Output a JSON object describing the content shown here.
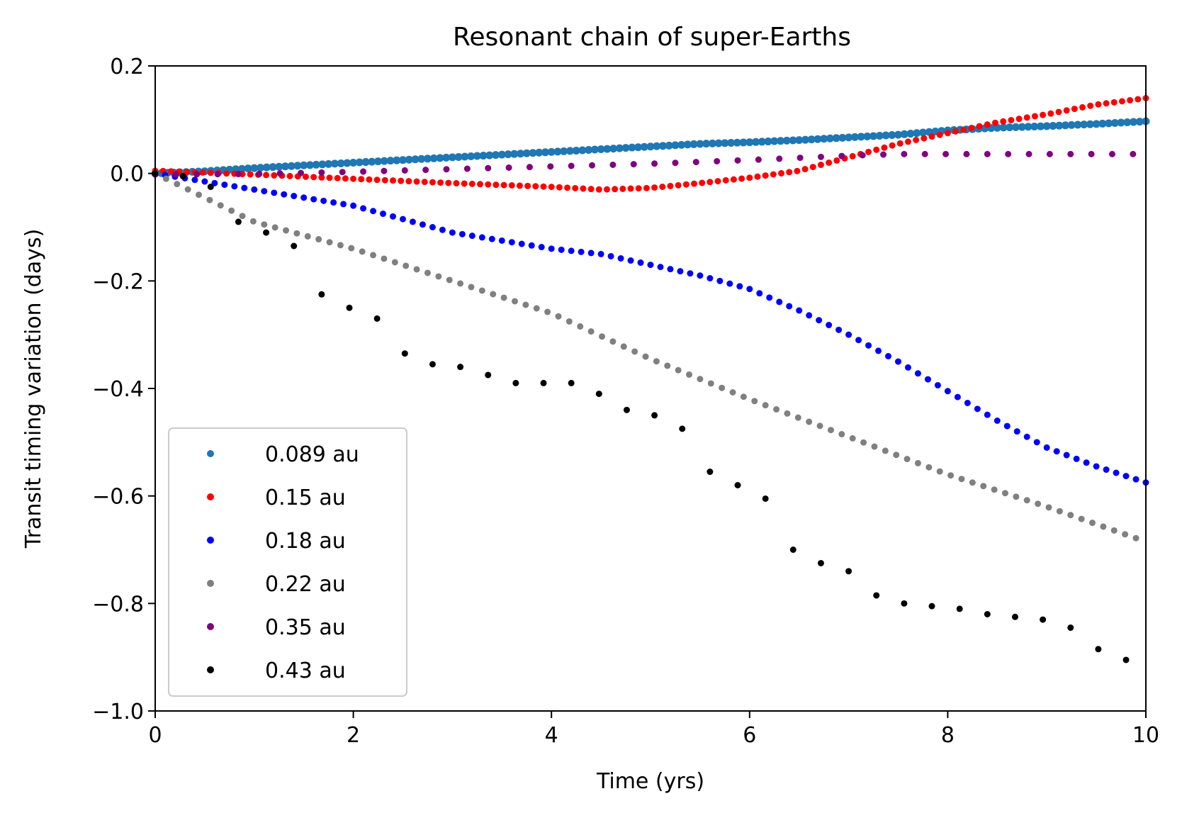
{
  "chart_data": {
    "type": "scatter",
    "title": "Resonant chain of super-Earths",
    "xlabel": "Time (yrs)",
    "ylabel": "Transit timing variation (days)",
    "xlim": [
      0,
      10
    ],
    "ylim": [
      -1.0,
      0.2
    ],
    "xticks": [
      0,
      2,
      4,
      6,
      8,
      10
    ],
    "xtick_labels": [
      "0",
      "2",
      "4",
      "6",
      "8",
      "10"
    ],
    "yticks": [
      0.2,
      0.0,
      -0.2,
      -0.4,
      -0.6,
      -0.8,
      -1.0
    ],
    "ytick_labels": [
      "0.2",
      "0.0",
      "−0.2",
      "−0.4",
      "−0.6",
      "−0.8",
      "−1.0"
    ],
    "grid": false,
    "legend_position": "lower-left",
    "series": [
      {
        "name": "0.089 au",
        "color": "#1f77b4",
        "x": [
          0,
          0.5,
          1,
          1.5,
          2,
          2.5,
          3,
          3.5,
          4,
          4.5,
          5,
          5.5,
          6,
          6.5,
          7,
          7.5,
          8,
          8.5,
          9,
          9.5,
          10
        ],
        "y": [
          0,
          0.004,
          0.01,
          0.015,
          0.02,
          0.025,
          0.03,
          0.035,
          0.04,
          0.045,
          0.05,
          0.055,
          0.058,
          0.062,
          0.067,
          0.072,
          0.08,
          0.085,
          0.088,
          0.092,
          0.097
        ],
        "period": 0.0625
      },
      {
        "name": "0.15 au",
        "color": "#ff0000",
        "x": [
          0,
          1,
          2,
          3,
          4,
          4.5,
          5,
          5.5,
          6,
          6.5,
          7,
          7.5,
          8,
          8.5,
          9,
          9.5,
          10
        ],
        "y": [
          0.005,
          -0.002,
          -0.01,
          -0.018,
          -0.025,
          -0.03,
          -0.027,
          -0.018,
          -0.008,
          0.005,
          0.03,
          0.055,
          0.075,
          0.095,
          0.11,
          0.128,
          0.14
        ],
        "period": 0.08
      },
      {
        "name": "0.18 au",
        "color": "#0000ff",
        "x": [
          0,
          1,
          2,
          3,
          4,
          4.5,
          5,
          5.5,
          6,
          6.5,
          7,
          7.5,
          8,
          8.5,
          9,
          9.5,
          10
        ],
        "y": [
          0,
          -0.03,
          -0.06,
          -0.11,
          -0.14,
          -0.15,
          -0.17,
          -0.19,
          -0.215,
          -0.255,
          -0.3,
          -0.35,
          -0.405,
          -0.46,
          -0.51,
          -0.545,
          -0.575
        ],
        "period": 0.1
      },
      {
        "name": "0.22 au",
        "color": "#808080",
        "x": [
          0,
          0.5,
          1,
          2,
          3,
          4,
          5,
          6,
          7,
          8,
          9,
          10
        ],
        "y": [
          0,
          -0.045,
          -0.09,
          -0.14,
          -0.2,
          -0.26,
          -0.345,
          -0.42,
          -0.49,
          -0.56,
          -0.62,
          -0.685
        ],
        "period": 0.11
      },
      {
        "name": "0.35 au",
        "color": "#800080",
        "x": [
          0,
          1,
          2,
          3,
          4,
          5,
          6,
          7,
          7.5,
          8,
          9,
          10
        ],
        "y": [
          -0.002,
          -0.001,
          0.003,
          0.008,
          0.013,
          0.018,
          0.025,
          0.033,
          0.036,
          0.036,
          0.036,
          0.036
        ],
        "period": 0.21
      },
      {
        "name": "0.43 au",
        "color": "#000000",
        "x": [
          0,
          0.28,
          0.56,
          0.84,
          1.12,
          1.4,
          1.68,
          1.96,
          2.24,
          2.52,
          2.8,
          3.08,
          3.36,
          3.64,
          3.92,
          4.2,
          4.48,
          4.76,
          5.04,
          5.32,
          5.6,
          5.88,
          6.16,
          6.44,
          6.72,
          7.0,
          7.28,
          7.56,
          7.84,
          8.12,
          8.4,
          8.68,
          8.96,
          9.24,
          9.52,
          9.8
        ],
        "y": [
          0,
          -0.005,
          -0.025,
          -0.09,
          -0.11,
          -0.135,
          -0.225,
          -0.25,
          -0.27,
          -0.335,
          -0.355,
          -0.36,
          -0.375,
          -0.39,
          -0.39,
          -0.39,
          -0.41,
          -0.44,
          -0.45,
          -0.475,
          -0.555,
          -0.58,
          -0.605,
          -0.7,
          -0.725,
          -0.74,
          -0.785,
          -0.8,
          -0.805,
          -0.81,
          -0.82,
          -0.825,
          -0.83,
          -0.845,
          -0.885,
          -0.905
        ]
      }
    ]
  }
}
